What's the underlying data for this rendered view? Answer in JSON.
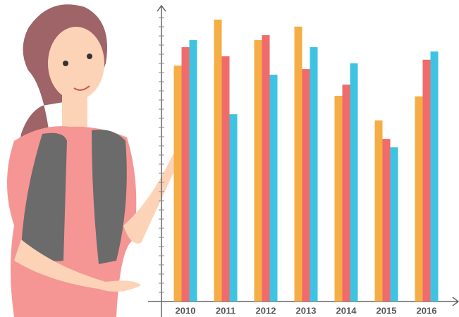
{
  "chart_data": {
    "type": "bar",
    "categories": [
      "2010",
      "2011",
      "2012",
      "2013",
      "2014",
      "2015",
      "2016"
    ],
    "series": [
      {
        "color": "#f5ae45",
        "values": [
          80.5,
          96.2,
          89.2,
          93.8,
          70.2,
          61.8,
          70.0
        ]
      },
      {
        "color": "#f06b6b",
        "values": [
          86.8,
          83.7,
          90.9,
          79.3,
          74.0,
          55.5,
          82.5
        ]
      },
      {
        "color": "#3ec4e2",
        "values": [
          89.2,
          63.9,
          77.4,
          86.8,
          81.3,
          52.6,
          85.3
        ]
      }
    ],
    "ylim": [
      0,
      100
    ]
  }
}
